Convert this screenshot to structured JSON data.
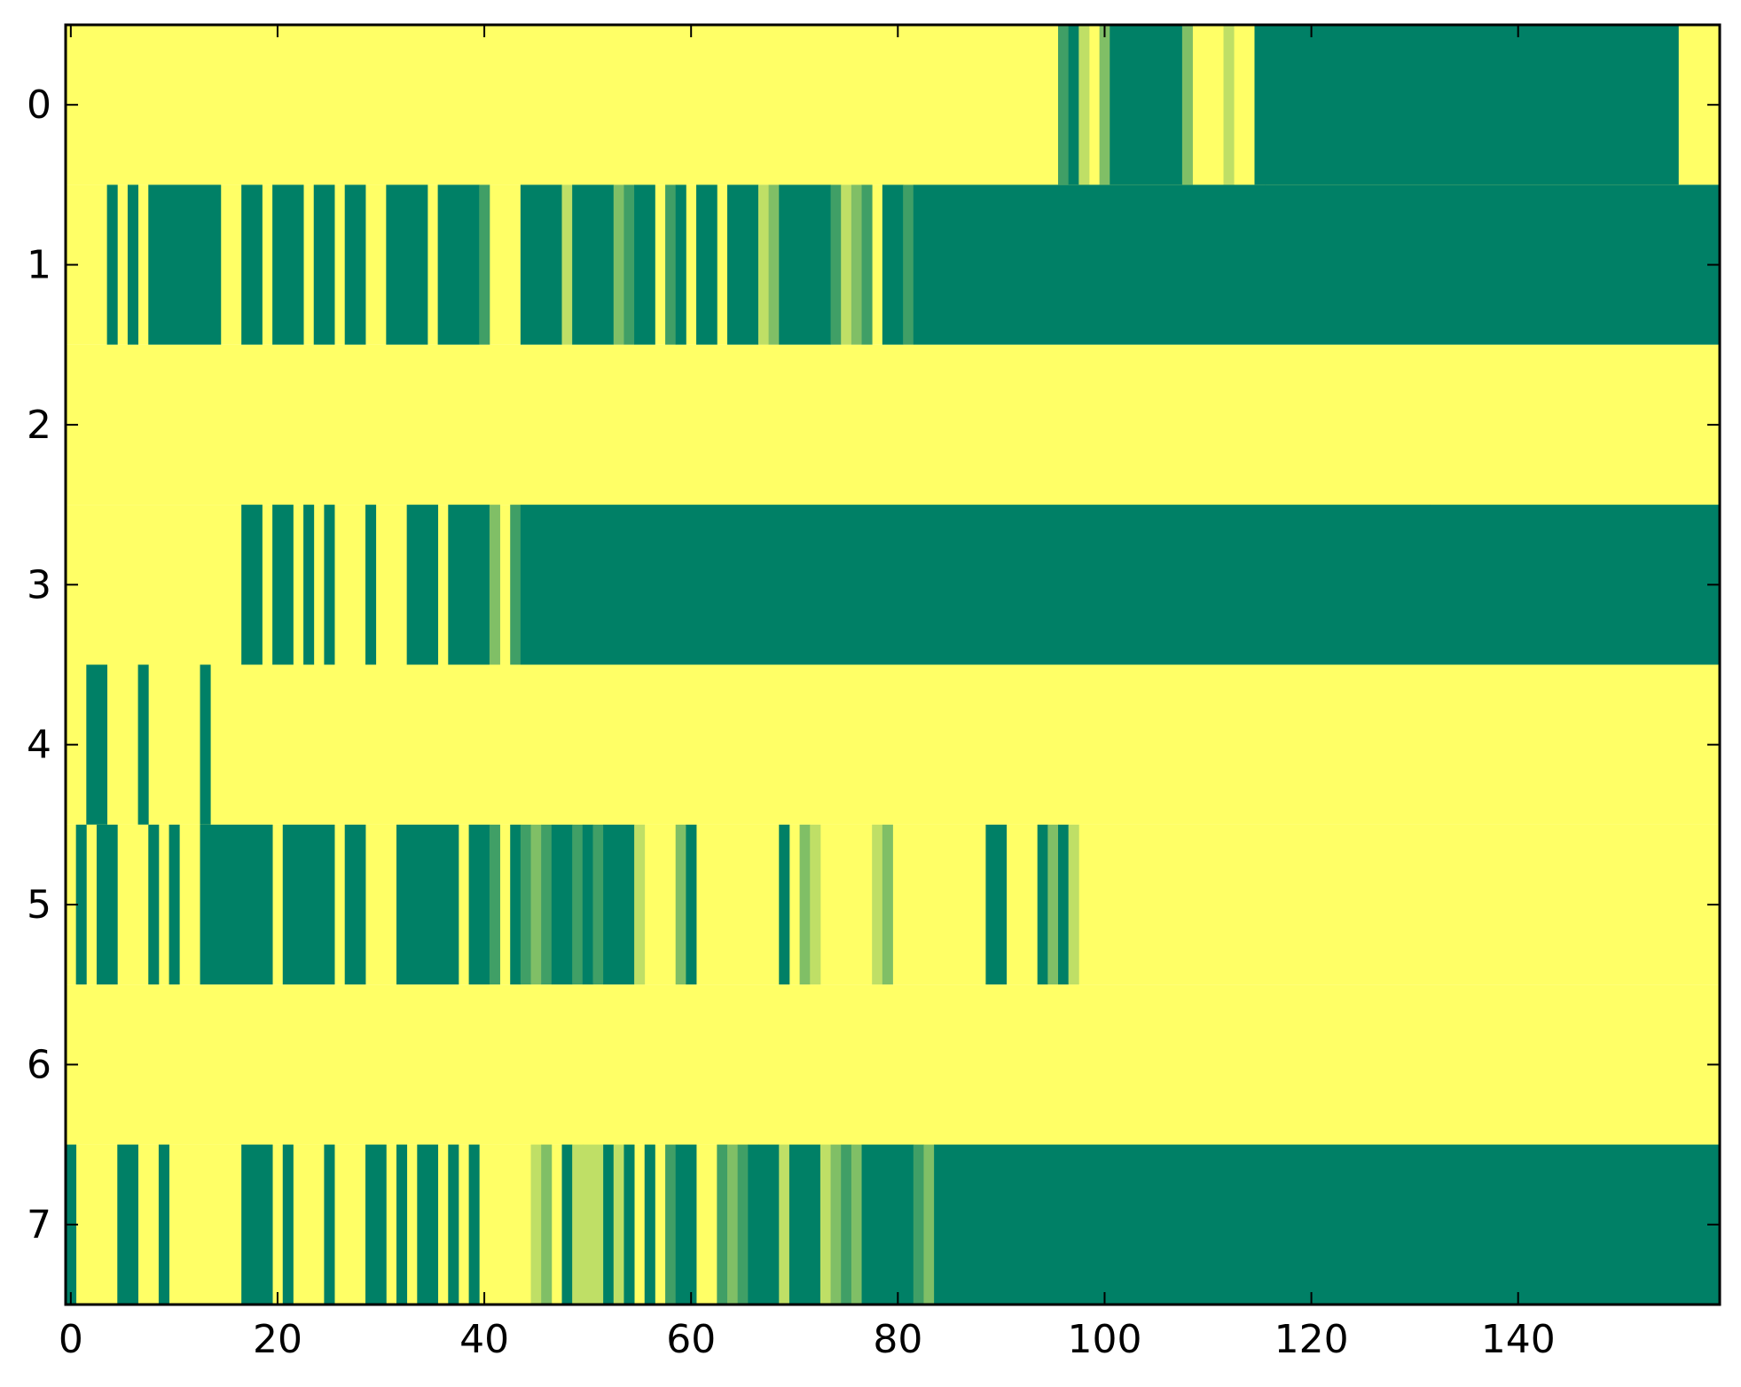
{
  "chart_data": {
    "type": "heatmap",
    "title": "",
    "xlabel": "",
    "ylabel": "",
    "x_range": [
      -0.5,
      159.5
    ],
    "y_range": [
      -0.5,
      7.5
    ],
    "y_inverted": true,
    "grid": false,
    "colormap": "summer_r",
    "colors": {
      "0": "#ffff66",
      "0.25": "#bfdf66",
      "0.5": "#80bf66",
      "0.75": "#409f66",
      "1": "#008066"
    },
    "value_range": [
      0,
      1
    ],
    "x_ticks": [
      0,
      20,
      40,
      60,
      80,
      100,
      120,
      140
    ],
    "x_tick_labels": [
      "0",
      "20",
      "40",
      "60",
      "80",
      "100",
      "120",
      "140"
    ],
    "y_ticks": [
      0,
      1,
      2,
      3,
      4,
      5,
      6,
      7
    ],
    "y_tick_labels": [
      "0",
      "1",
      "2",
      "3",
      "4",
      "5",
      "6",
      "7"
    ],
    "n_columns": 160,
    "default_value": 0,
    "rows": [
      {
        "row": 0,
        "segments": [
          [
            96,
            1,
            0.75
          ],
          [
            97,
            1,
            1
          ],
          [
            98,
            1,
            0.25
          ],
          [
            100,
            1,
            0.5
          ],
          [
            101,
            7,
            1
          ],
          [
            108,
            1,
            0.5
          ],
          [
            112,
            1,
            0.25
          ],
          [
            115,
            1,
            1
          ],
          [
            116,
            40,
            1
          ]
        ]
      },
      {
        "row": 1,
        "segments": [
          [
            4,
            1,
            1
          ],
          [
            6,
            1,
            1
          ],
          [
            8,
            7,
            1
          ],
          [
            17,
            2,
            1
          ],
          [
            20,
            3,
            1
          ],
          [
            24,
            2,
            1
          ],
          [
            27,
            2,
            1
          ],
          [
            31,
            4,
            1
          ],
          [
            36,
            4,
            1
          ],
          [
            40,
            1,
            0.75
          ],
          [
            44,
            4,
            1
          ],
          [
            48,
            1,
            0.25
          ],
          [
            49,
            4,
            1
          ],
          [
            53,
            1,
            0.5
          ],
          [
            54,
            1,
            0.75
          ],
          [
            55,
            2,
            1
          ],
          [
            58,
            1,
            0.75
          ],
          [
            59,
            1,
            1
          ],
          [
            61,
            2,
            1
          ],
          [
            64,
            3,
            1
          ],
          [
            67,
            1,
            0.25
          ],
          [
            68,
            1,
            0.5
          ],
          [
            69,
            5,
            1
          ],
          [
            74,
            1,
            0.75
          ],
          [
            75,
            1,
            0.25
          ],
          [
            76,
            1,
            0.5
          ],
          [
            77,
            1,
            0.75
          ],
          [
            79,
            2,
            1
          ],
          [
            81,
            1,
            0.75
          ],
          [
            82,
            78,
            1
          ]
        ]
      },
      {
        "row": 2,
        "segments": []
      },
      {
        "row": 3,
        "segments": [
          [
            17,
            2,
            1
          ],
          [
            20,
            2,
            1
          ],
          [
            23,
            1,
            1
          ],
          [
            25,
            1,
            1
          ],
          [
            29,
            1,
            1
          ],
          [
            33,
            3,
            1
          ],
          [
            37,
            4,
            1
          ],
          [
            41,
            1,
            0.5
          ],
          [
            43,
            1,
            0.75
          ],
          [
            44,
            88,
            1
          ],
          [
            132,
            28,
            1
          ]
        ]
      },
      {
        "row": 4,
        "segments": [
          [
            2,
            2,
            1
          ],
          [
            7,
            1,
            1
          ],
          [
            13,
            1,
            1
          ]
        ]
      },
      {
        "row": 5,
        "segments": [
          [
            1,
            1,
            1
          ],
          [
            3,
            2,
            1
          ],
          [
            8,
            1,
            1
          ],
          [
            10,
            1,
            1
          ],
          [
            13,
            7,
            1
          ],
          [
            21,
            5,
            1
          ],
          [
            27,
            2,
            1
          ],
          [
            32,
            6,
            1
          ],
          [
            39,
            2,
            1
          ],
          [
            41,
            1,
            0.75
          ],
          [
            43,
            1,
            1
          ],
          [
            44,
            1,
            0.75
          ],
          [
            45,
            1,
            0.5
          ],
          [
            46,
            1,
            0.75
          ],
          [
            47,
            2,
            1
          ],
          [
            49,
            1,
            0.75
          ],
          [
            50,
            1,
            1
          ],
          [
            51,
            1,
            0.75
          ],
          [
            52,
            3,
            1
          ],
          [
            55,
            1,
            0.25
          ],
          [
            59,
            1,
            0.5
          ],
          [
            60,
            1,
            1
          ],
          [
            69,
            1,
            1
          ],
          [
            71,
            1,
            0.5
          ],
          [
            72,
            1,
            0.25
          ],
          [
            78,
            1,
            0.25
          ],
          [
            79,
            1,
            0.5
          ],
          [
            89,
            2,
            1
          ],
          [
            94,
            1,
            1
          ],
          [
            95,
            1,
            0.5
          ],
          [
            96,
            1,
            1
          ],
          [
            97,
            1,
            0.25
          ]
        ]
      },
      {
        "row": 6,
        "segments": []
      },
      {
        "row": 7,
        "segments": [
          [
            0,
            1,
            1
          ],
          [
            5,
            2,
            1
          ],
          [
            9,
            1,
            1
          ],
          [
            17,
            3,
            1
          ],
          [
            21,
            1,
            1
          ],
          [
            25,
            1,
            1
          ],
          [
            29,
            2,
            1
          ],
          [
            32,
            1,
            1
          ],
          [
            34,
            2,
            1
          ],
          [
            37,
            1,
            1
          ],
          [
            39,
            1,
            1
          ],
          [
            45,
            1,
            0.25
          ],
          [
            46,
            1,
            0.5
          ],
          [
            48,
            1,
            1
          ],
          [
            49,
            1,
            0.25
          ],
          [
            50,
            2,
            0.25
          ],
          [
            52,
            1,
            1
          ],
          [
            53,
            1,
            0.25
          ],
          [
            54,
            1,
            1
          ],
          [
            56,
            1,
            1
          ],
          [
            58,
            1,
            0.75
          ],
          [
            59,
            2,
            1
          ],
          [
            63,
            1,
            0.75
          ],
          [
            64,
            1,
            0.5
          ],
          [
            65,
            1,
            0.75
          ],
          [
            66,
            1,
            1
          ],
          [
            67,
            2,
            1
          ],
          [
            69,
            1,
            0.25
          ],
          [
            70,
            3,
            1
          ],
          [
            73,
            1,
            0.25
          ],
          [
            74,
            1,
            0.5
          ],
          [
            75,
            1,
            0.75
          ],
          [
            76,
            1,
            0.5
          ],
          [
            77,
            5,
            1
          ],
          [
            82,
            1,
            0.75
          ],
          [
            83,
            1,
            0.5
          ],
          [
            84,
            76,
            1
          ]
        ]
      }
    ]
  }
}
